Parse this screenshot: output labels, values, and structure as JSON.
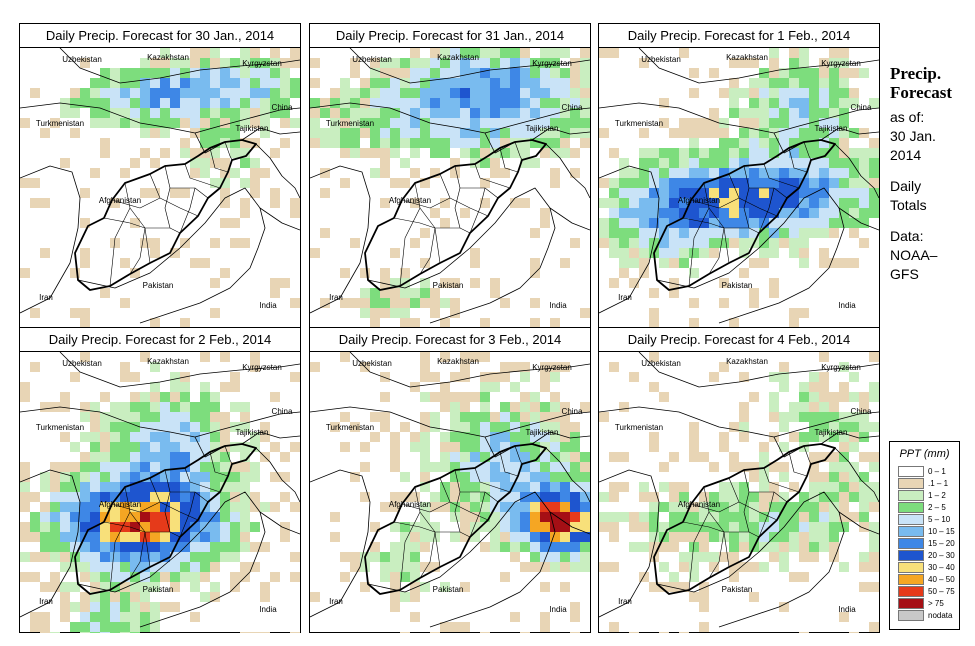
{
  "panels": [
    {
      "title": "Daily Precip. Forecast for  30 Jan., 2014",
      "pattern": "north-light"
    },
    {
      "title": "Daily Precip. Forecast for  31 Jan., 2014",
      "pattern": "north-wide"
    },
    {
      "title": "Daily Precip. Forecast for  1 Feb., 2014",
      "pattern": "band-heavy"
    },
    {
      "title": "Daily Precip. Forecast for  2 Feb., 2014",
      "pattern": "center-heavy"
    },
    {
      "title": "Daily Precip. Forecast for  3 Feb., 2014",
      "pattern": "east-heavy"
    },
    {
      "title": "Daily Precip. Forecast for  4 Feb., 2014",
      "pattern": "light-scattered"
    }
  ],
  "map_labels": {
    "kazakhstan": "Kazakhstan",
    "uzbekistan": "Uzbekistan",
    "kyrgyzstan": "Kyrgyzstan",
    "china": "China",
    "turkmenistan": "Turkmenistan",
    "tajikistan": "Tajikistan",
    "afghanistan": "Afghanistan",
    "iran": "Iran",
    "pakistan": "Pakistan",
    "india": "India"
  },
  "sidebar": {
    "title_line1": "Precip.",
    "title_line2": "Forecast",
    "asof_line1": "as of:",
    "asof_line2": "30 Jan.",
    "asof_line3": "2014",
    "totals_line1": "Daily",
    "totals_line2": "Totals",
    "data_line1": "Data:",
    "data_line2": "NOAA–",
    "data_line3": "GFS"
  },
  "legend": {
    "title": "PPT (mm)",
    "classes": [
      {
        "label": "0 – 1",
        "color": "#ffffff"
      },
      {
        "label": ".1 – 1",
        "color": "#e8d5b5"
      },
      {
        "label": "1 – 2",
        "color": "#c9eec0"
      },
      {
        "label": "2 – 5",
        "color": "#7ddd7d"
      },
      {
        "label": "5 – 10",
        "color": "#c9e3f7"
      },
      {
        "label": "10 – 15",
        "color": "#79bbef"
      },
      {
        "label": "15 – 20",
        "color": "#3e87e6"
      },
      {
        "label": "20 – 30",
        "color": "#1e55cf"
      },
      {
        "label": "30 – 40",
        "color": "#f8e07a"
      },
      {
        "label": "40 – 50",
        "color": "#f5a623"
      },
      {
        "label": "50 – 75",
        "color": "#e53a1a"
      },
      {
        "label": "> 75",
        "color": "#a50f15"
      },
      {
        "label": "nodata",
        "color": "#c8c8c8"
      }
    ]
  }
}
